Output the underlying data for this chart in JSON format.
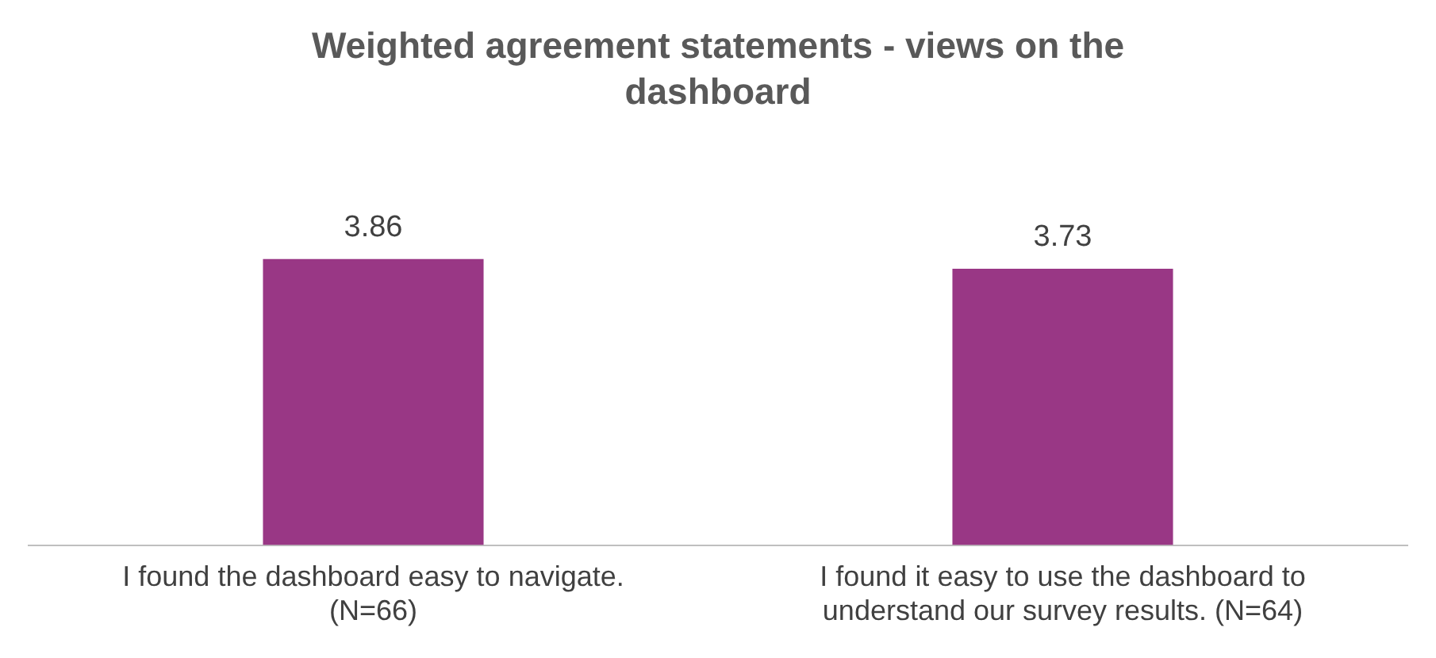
{
  "chart_data": {
    "type": "bar",
    "title": "Weighted agreement statements - views on the dashboard",
    "categories": [
      "I found the dashboard easy to navigate. (N=66)",
      "I found it easy to use the dashboard to understand our survey results. (N=64)"
    ],
    "values": [
      3.86,
      3.73
    ],
    "color": "#993785",
    "data_labels": true,
    "grid": false,
    "legend": false
  }
}
